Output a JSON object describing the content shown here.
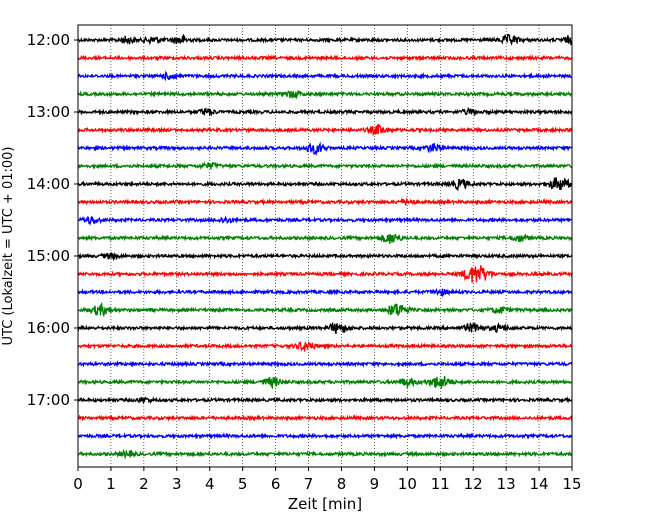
{
  "chart_data": {
    "type": "line",
    "xlabel": "Zeit  [min]",
    "ylabel": "UTC (Lokalzeit = UTC + 01:00)",
    "xlim": [
      0,
      15
    ],
    "x_ticks": [
      0,
      1,
      2,
      3,
      4,
      5,
      6,
      7,
      8,
      9,
      10,
      11,
      12,
      13,
      14,
      15
    ],
    "y_tick_labels": [
      "12:00",
      "13:00",
      "14:00",
      "15:00",
      "16:00",
      "17:00"
    ],
    "trace_interval_min": 15,
    "start_utc": "12:00",
    "trace_color_cycle": [
      "#000000",
      "#ff0000",
      "#0000ff",
      "#008000"
    ],
    "vertical_grid": "dotted",
    "traces": [
      {
        "start": "12:00",
        "events": [
          {
            "t": 1.5,
            "amp": 0.5
          },
          {
            "t": 2.3,
            "amp": 0.5
          },
          {
            "t": 3.1,
            "amp": 0.6
          },
          {
            "t": 13.1,
            "amp": 0.7
          },
          {
            "t": 15.0,
            "amp": 0.6
          }
        ]
      },
      {
        "start": "12:15",
        "events": []
      },
      {
        "start": "12:30",
        "events": [
          {
            "t": 2.8,
            "amp": 0.5
          }
        ]
      },
      {
        "start": "12:45",
        "events": [
          {
            "t": 6.5,
            "amp": 0.5
          }
        ]
      },
      {
        "start": "13:00",
        "events": [
          {
            "t": 3.9,
            "amp": 0.5
          },
          {
            "t": 11.9,
            "amp": 0.4
          }
        ]
      },
      {
        "start": "13:15",
        "events": [
          {
            "t": 9.1,
            "amp": 0.7
          }
        ]
      },
      {
        "start": "13:30",
        "events": [
          {
            "t": 7.2,
            "amp": 0.8
          },
          {
            "t": 10.8,
            "amp": 0.6
          }
        ]
      },
      {
        "start": "13:45",
        "events": [
          {
            "t": 4.0,
            "amp": 0.4
          }
        ]
      },
      {
        "start": "14:00",
        "events": [
          {
            "t": 11.6,
            "amp": 0.7
          },
          {
            "t": 14.6,
            "amp": 1.0
          }
        ]
      },
      {
        "start": "14:15",
        "events": [
          {
            "t": 10.0,
            "amp": 0.4
          }
        ]
      },
      {
        "start": "14:30",
        "events": [
          {
            "t": 0.4,
            "amp": 0.5
          },
          {
            "t": 4.5,
            "amp": 0.4
          }
        ]
      },
      {
        "start": "14:45",
        "events": [
          {
            "t": 9.5,
            "amp": 0.8
          },
          {
            "t": 13.4,
            "amp": 0.5
          }
        ]
      },
      {
        "start": "15:00",
        "events": [
          {
            "t": 1.0,
            "amp": 0.4
          }
        ]
      },
      {
        "start": "15:15",
        "events": [
          {
            "t": 12.1,
            "amp": 1.5
          }
        ]
      },
      {
        "start": "15:30",
        "events": [
          {
            "t": 11.0,
            "amp": 0.4
          }
        ]
      },
      {
        "start": "15:45",
        "events": [
          {
            "t": 0.7,
            "amp": 0.8
          },
          {
            "t": 9.7,
            "amp": 1.0
          },
          {
            "t": 12.8,
            "amp": 0.5
          }
        ]
      },
      {
        "start": "16:00",
        "events": [
          {
            "t": 7.9,
            "amp": 0.8
          },
          {
            "t": 12.0,
            "amp": 0.7
          },
          {
            "t": 12.8,
            "amp": 0.5
          }
        ]
      },
      {
        "start": "16:15",
        "events": [
          {
            "t": 6.9,
            "amp": 0.7
          }
        ]
      },
      {
        "start": "16:30",
        "events": []
      },
      {
        "start": "16:45",
        "events": [
          {
            "t": 5.9,
            "amp": 0.7
          },
          {
            "t": 10.0,
            "amp": 0.6
          },
          {
            "t": 11.0,
            "amp": 1.0
          }
        ]
      },
      {
        "start": "17:00",
        "events": [
          {
            "t": 2.0,
            "amp": 0.3
          }
        ]
      },
      {
        "start": "17:15",
        "events": []
      },
      {
        "start": "17:30",
        "events": []
      },
      {
        "start": "17:45",
        "events": [
          {
            "t": 1.5,
            "amp": 0.4
          }
        ]
      }
    ]
  }
}
